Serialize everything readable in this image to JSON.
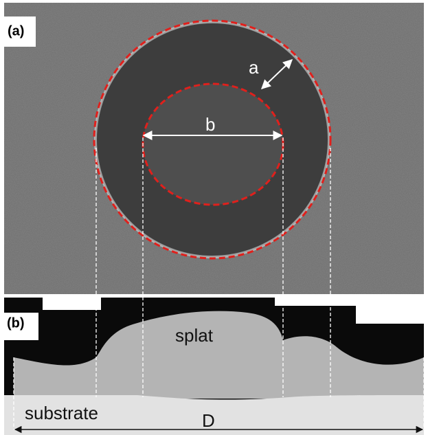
{
  "panels": [
    {
      "label": "(a)",
      "annotations": [
        "a",
        "b"
      ]
    },
    {
      "label": "(b)",
      "annotations": [
        "splat",
        "substrate",
        "D"
      ]
    }
  ]
}
